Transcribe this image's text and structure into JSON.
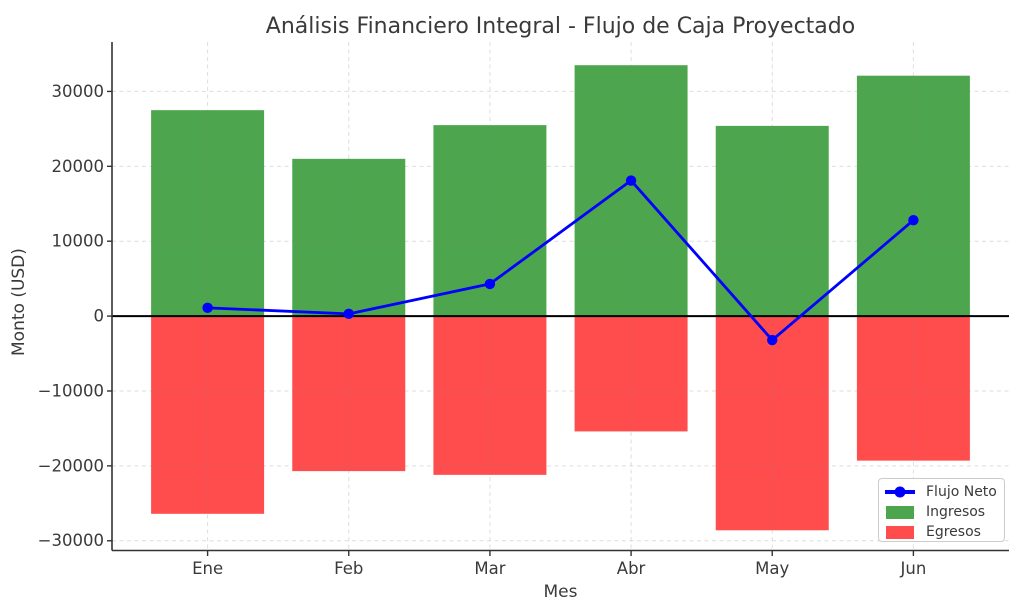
{
  "figure": {
    "title": "Análisis Financiero Integral - Flujo de Caja Proyectado",
    "xlabel": "Mes",
    "ylabel": "Monto (USD)"
  },
  "chart_data": {
    "type": "combo-bar-line",
    "title": "Análisis Financiero Integral - Flujo de Caja Proyectado",
    "xlabel": "Mes",
    "ylabel": "Monto (USD)",
    "categories": [
      "Ene",
      "Feb",
      "Mar",
      "Abr",
      "May",
      "Jun"
    ],
    "series": [
      {
        "name": "Ingresos",
        "type": "bar",
        "color": "#4DA64D",
        "values": [
          27500,
          21000,
          25500,
          33500,
          25400,
          32100
        ]
      },
      {
        "name": "Egresos",
        "type": "bar",
        "color": "#FF4D4D",
        "values": [
          -26400,
          -20700,
          -21200,
          -15400,
          -28600,
          -19300
        ]
      },
      {
        "name": "Flujo Neto",
        "type": "line",
        "color": "#0000FF",
        "values": [
          1100,
          300,
          4300,
          18100,
          -3200,
          12800
        ]
      }
    ],
    "yticks": [
      -30000,
      -20000,
      -10000,
      0,
      10000,
      20000,
      30000
    ],
    "ylim": [
      -31300,
      36600
    ],
    "grid": {
      "style": "dashed",
      "color": "#808080",
      "opacity": 0.26
    },
    "zero_line_color": "#000000",
    "legend": {
      "position": "lower-right",
      "entries": [
        "Flujo Neto",
        "Ingresos",
        "Egresos"
      ]
    }
  }
}
